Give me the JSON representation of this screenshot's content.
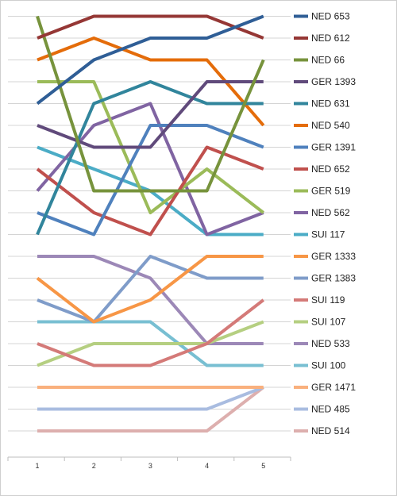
{
  "chart_data": {
    "type": "line",
    "categories": [
      "1",
      "2",
      "3",
      "4",
      "5"
    ],
    "title": "",
    "xlabel": "",
    "ylabel": "",
    "ylim": [
      0.5,
      20.5
    ],
    "y_reversed": true,
    "grid": "horizontal",
    "legend_position": "right",
    "series": [
      {
        "name": "NED 653",
        "color": "#2F5E96",
        "values": [
          5,
          3,
          2,
          2,
          1
        ]
      },
      {
        "name": "NED 612",
        "color": "#953735",
        "values": [
          2,
          1,
          1,
          1,
          2
        ]
      },
      {
        "name": "NED 66",
        "color": "#77933C",
        "values": [
          1,
          9,
          9,
          9,
          3
        ]
      },
      {
        "name": "GER 1393",
        "color": "#604A7B",
        "values": [
          6,
          7,
          7,
          4,
          4
        ]
      },
      {
        "name": "NED 631",
        "color": "#31859C",
        "values": [
          11,
          5,
          4,
          5,
          5
        ]
      },
      {
        "name": "NED 540",
        "color": "#E46C0A",
        "values": [
          3,
          2,
          3,
          3,
          6
        ]
      },
      {
        "name": "GER 1391",
        "color": "#4F81BD",
        "values": [
          10,
          11,
          6,
          6,
          7
        ]
      },
      {
        "name": "NED 652",
        "color": "#C0504D",
        "values": [
          8,
          10,
          11,
          7,
          8
        ]
      },
      {
        "name": "GER 519",
        "color": "#9BBB59",
        "values": [
          4,
          4,
          10,
          8,
          10
        ]
      },
      {
        "name": "NED 562",
        "color": "#8064A2",
        "values": [
          9,
          6,
          5,
          11,
          10
        ]
      },
      {
        "name": "SUI 117",
        "color": "#4BACC6",
        "values": [
          7,
          8,
          9,
          11,
          11
        ]
      },
      {
        "name": "GER 1333",
        "color": "#F79646",
        "values": [
          13,
          15,
          14,
          12,
          12
        ]
      },
      {
        "name": "GER 1383",
        "color": "#7F9CC9",
        "values": [
          14,
          15,
          12,
          13,
          13
        ]
      },
      {
        "name": "SUI 119",
        "color": "#D47A78",
        "values": [
          16,
          17,
          17,
          16,
          14
        ]
      },
      {
        "name": "SUI 107",
        "color": "#B5CF81",
        "values": [
          17,
          16,
          16,
          16,
          15
        ]
      },
      {
        "name": "NED 533",
        "color": "#9C88B7",
        "values": [
          12,
          12,
          13,
          16,
          16
        ]
      },
      {
        "name": "SUI 100",
        "color": "#78BFD2",
        "values": [
          15,
          15,
          15,
          17,
          17
        ]
      },
      {
        "name": "GER 1471",
        "color": "#F9B07D",
        "values": [
          18,
          18,
          18,
          18,
          18
        ]
      },
      {
        "name": "NED 485",
        "color": "#A9BCE0",
        "values": [
          19,
          19,
          19,
          19,
          18
        ]
      },
      {
        "name": "NED 514",
        "color": "#DDAFAE",
        "values": [
          20,
          20,
          20,
          20,
          18
        ]
      }
    ]
  }
}
